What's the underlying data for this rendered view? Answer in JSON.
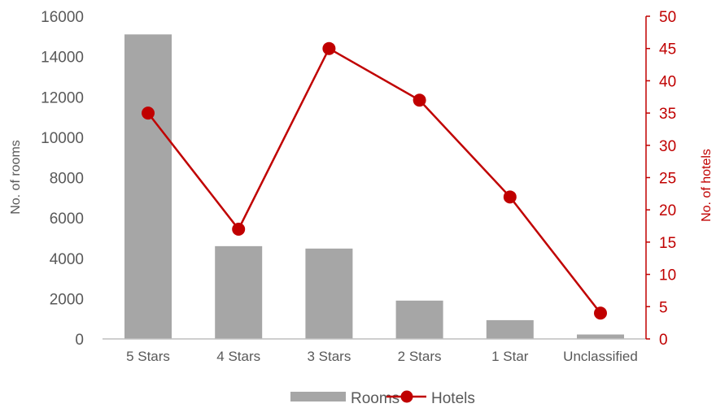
{
  "chart_data": {
    "type": "bar+line",
    "categories": [
      "5 Stars",
      "4 Stars",
      "3 Stars",
      "2 Stars",
      "1 Star",
      "Unclassified"
    ],
    "series": [
      {
        "name": "Rooms",
        "type": "bar",
        "axis": "left",
        "values": [
          15100,
          4600,
          4480,
          1900,
          930,
          220
        ]
      },
      {
        "name": "Hotels",
        "type": "line",
        "axis": "right",
        "values": [
          35,
          17,
          45,
          37,
          22,
          4
        ]
      }
    ],
    "y_left": {
      "label": "No. of rooms",
      "min": 0,
      "max": 16000,
      "ticks": [
        0,
        2000,
        4000,
        6000,
        8000,
        10000,
        12000,
        14000,
        16000
      ]
    },
    "y_right": {
      "label": "No. of hotels",
      "min": 0,
      "max": 50,
      "ticks": [
        0,
        5,
        10,
        15,
        20,
        25,
        30,
        35,
        40,
        45,
        50
      ]
    },
    "grid": false,
    "legend": "bottom",
    "colors": {
      "bars": "#a6a6a6",
      "line": "#c00000",
      "left_text": "#595959",
      "right_text": "#c00000"
    }
  }
}
